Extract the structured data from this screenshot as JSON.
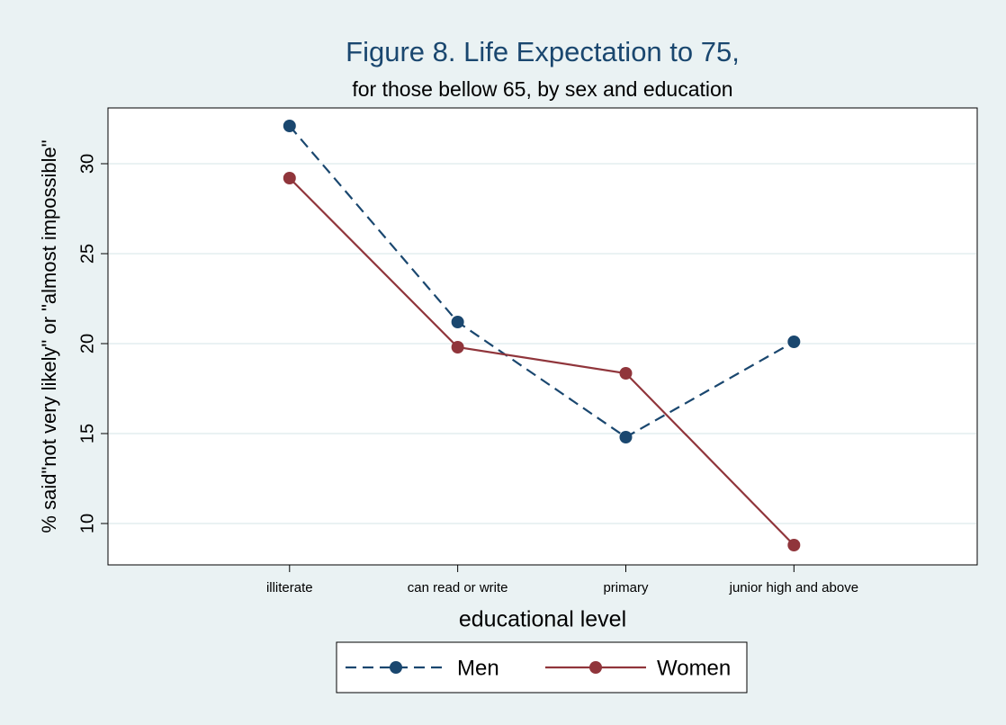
{
  "chart_data": {
    "type": "line",
    "title": "Figure 8. Life Expectation to 75,",
    "subtitle": "for those bellow 65, by sex and education",
    "x_label": "educational level",
    "y_label": "% said\"not very likely\" or \"almost impossible\"",
    "categories": [
      "illiterate",
      "can read or write",
      "primary",
      "junior high and above"
    ],
    "series": [
      {
        "name": "Men",
        "color": "#1a476f",
        "dash": true,
        "values": [
          32.1,
          21.2,
          14.8,
          20.1
        ]
      },
      {
        "name": "Women",
        "color": "#90353b",
        "dash": false,
        "values": [
          29.2,
          19.8,
          18.35,
          8.8
        ]
      }
    ],
    "ylim": [
      7.7,
      33.1
    ],
    "yticks": [
      10,
      15,
      20,
      25,
      30
    ],
    "grid": true,
    "legend": "bottom"
  }
}
